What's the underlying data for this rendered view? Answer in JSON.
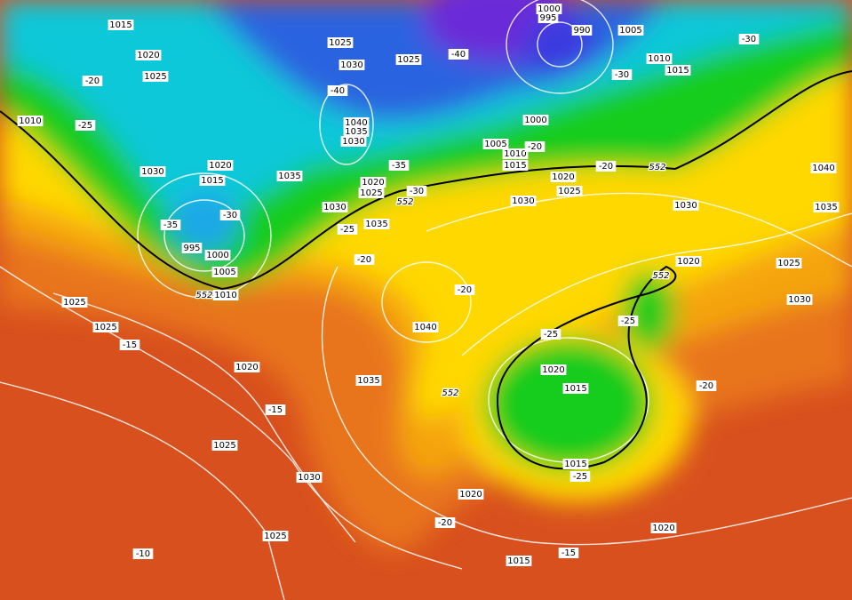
{
  "isobar_labels": [
    1015,
    1020,
    1025,
    1025,
    1030,
    1025,
    1010,
    1030,
    1020,
    1015,
    1035,
    995,
    1000,
    1005,
    1010,
    1040,
    1035,
    1030,
    1020,
    1025,
    1030,
    1035,
    1000,
    995,
    990,
    1005,
    1010,
    1015,
    1000,
    1005,
    1010,
    1015,
    1020,
    1025,
    1030,
    1030,
    1040,
    1035,
    1025,
    1030,
    1020,
    1040,
    1025,
    1025,
    1020,
    1035,
    1025,
    1030,
    1020,
    1015,
    1015,
    1020,
    1025,
    1020,
    1015
  ],
  "temperature_labels": [
    -20,
    -25,
    -40,
    -40,
    -30,
    -30,
    -35,
    -30,
    -20,
    -20,
    -30,
    -35,
    -25,
    -20,
    -20,
    -25,
    -25,
    -20,
    -15,
    -15,
    -25,
    -20,
    -15,
    -10
  ],
  "geopotential_labels": [
    552,
    552,
    552,
    552,
    552
  ]
}
